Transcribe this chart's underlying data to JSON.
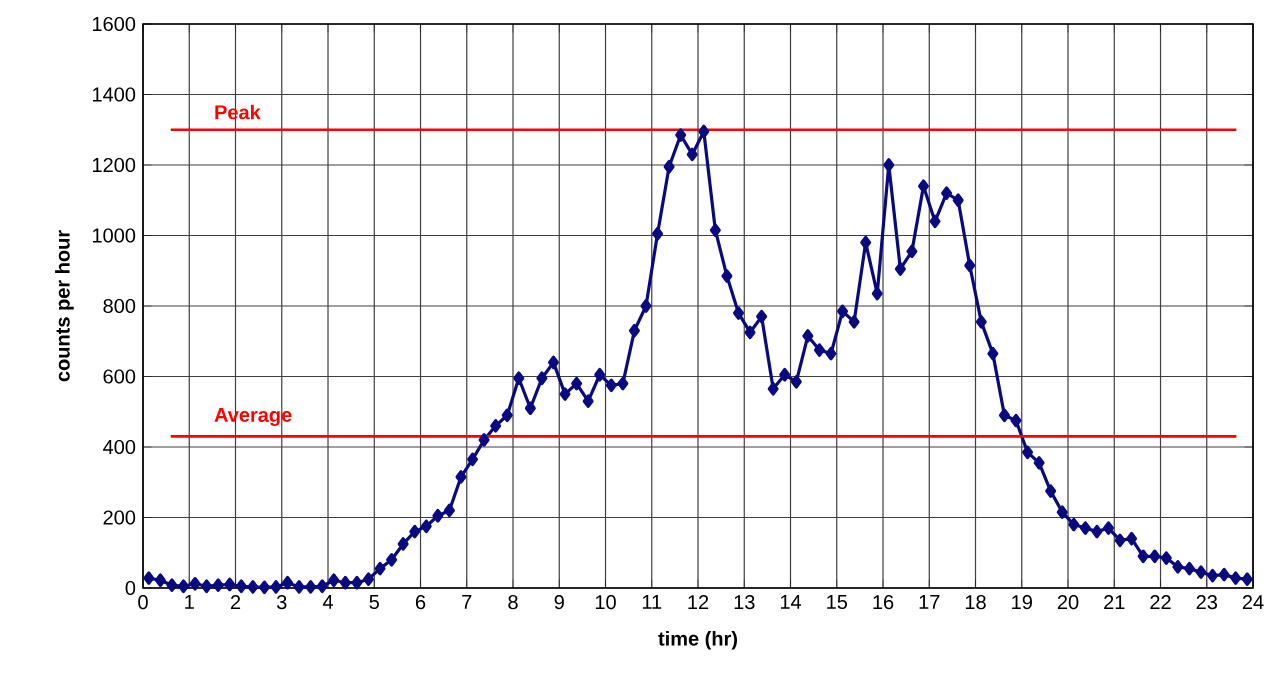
{
  "chart_data": {
    "type": "line",
    "xlabel": "time (hr)",
    "ylabel": "counts per hour",
    "x": [
      0.125,
      0.375,
      0.625,
      0.875,
      1.125,
      1.375,
      1.625,
      1.875,
      2.125,
      2.375,
      2.625,
      2.875,
      3.125,
      3.375,
      3.625,
      3.875,
      4.125,
      4.375,
      4.625,
      4.875,
      5.125,
      5.375,
      5.625,
      5.875,
      6.125,
      6.375,
      6.625,
      6.875,
      7.125,
      7.375,
      7.625,
      7.875,
      8.125,
      8.375,
      8.625,
      8.875,
      9.125,
      9.375,
      9.625,
      9.875,
      10.125,
      10.375,
      10.625,
      10.875,
      11.125,
      11.375,
      11.625,
      11.875,
      12.125,
      12.375,
      12.625,
      12.875,
      13.125,
      13.375,
      13.625,
      13.875,
      14.125,
      14.375,
      14.625,
      14.875,
      15.125,
      15.375,
      15.625,
      15.875,
      16.125,
      16.375,
      16.625,
      16.875,
      17.125,
      17.375,
      17.625,
      17.875,
      18.125,
      18.375,
      18.625,
      18.875,
      19.125,
      19.375,
      19.625,
      19.875,
      20.125,
      20.375,
      20.625,
      20.875,
      21.125,
      21.375,
      21.625,
      21.875,
      22.125,
      22.375,
      22.625,
      22.875,
      23.125,
      23.375,
      23.625,
      23.875
    ],
    "series": [
      {
        "color": "#0a0a80",
        "values": [
          28,
          22,
          8,
          5,
          12,
          5,
          8,
          10,
          5,
          3,
          2,
          3,
          15,
          3,
          3,
          5,
          22,
          15,
          15,
          25,
          55,
          80,
          125,
          160,
          175,
          205,
          220,
          315,
          365,
          420,
          460,
          490,
          595,
          510,
          595,
          640,
          550,
          580,
          530,
          605,
          575,
          580,
          730,
          800,
          1005,
          1195,
          1285,
          1230,
          1295,
          1015,
          885,
          780,
          725,
          770,
          565,
          605,
          585,
          715,
          675,
          665,
          785,
          755,
          980,
          835,
          1200,
          905,
          955,
          1140,
          1040,
          1120,
          1100,
          915,
          755,
          665,
          490,
          475,
          385,
          355,
          275,
          215,
          180,
          170,
          160,
          170,
          135,
          140,
          90,
          90,
          85,
          60,
          55,
          45,
          35,
          38,
          28,
          25
        ]
      }
    ],
    "xlim": [
      0,
      24
    ],
    "xticks": [
      0,
      1,
      2,
      3,
      4,
      5,
      6,
      7,
      8,
      9,
      10,
      11,
      12,
      13,
      14,
      15,
      16,
      17,
      18,
      19,
      20,
      21,
      22,
      23,
      24
    ],
    "ylim": [
      0,
      1600
    ],
    "yticks": [
      0,
      200,
      400,
      600,
      800,
      1000,
      1200,
      1400,
      1600
    ],
    "grid": true,
    "marker": "diamond",
    "line_style": "solid",
    "ref_lines": [
      {
        "axis": "y",
        "value": 430,
        "label": "Average",
        "color": "#ff0000"
      },
      {
        "axis": "y",
        "value": 1300,
        "label": "Peak",
        "color": "#ff0000"
      }
    ]
  }
}
